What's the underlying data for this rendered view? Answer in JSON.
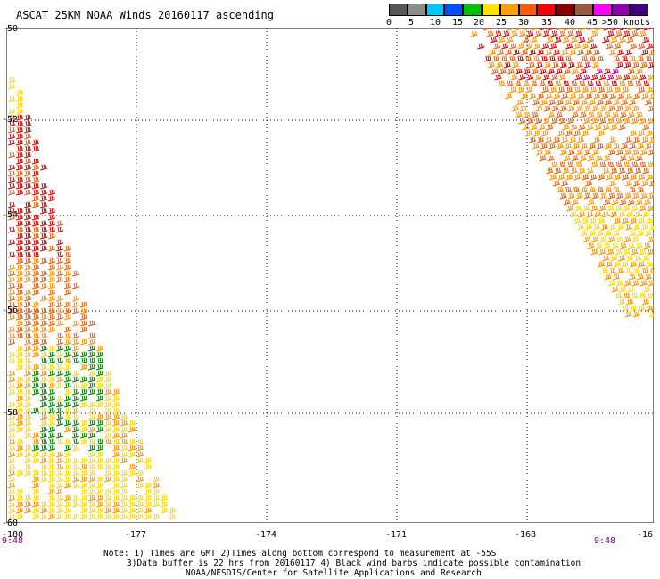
{
  "title": "ASCAT 25KM NOAA Winds 20160117 ascending",
  "legend": {
    "colors": [
      "#555555",
      "#8c8c8c",
      "#00c8ff",
      "#0050ff",
      "#00c000",
      "#ffe400",
      "#ffa000",
      "#ff5a00",
      "#ff0000",
      "#8c0000",
      "#9a5a3c",
      "#ff00ff",
      "#9000b0",
      "#400080"
    ],
    "labels": [
      "0",
      "5",
      "10",
      "15",
      "20",
      "25",
      "30",
      "35",
      "40",
      "45",
      ">50 knots"
    ]
  },
  "map": {
    "lat_labels": [
      "-50",
      "-52",
      "-54",
      "-56",
      "-58",
      "-60"
    ],
    "lon_labels": [
      "-180",
      "-177",
      "-174",
      "-171",
      "-168",
      "-16"
    ],
    "time_labels": [
      "9:48",
      "9:48"
    ],
    "gridline_style": "dotted",
    "wind_colors": {
      "yellow": "#ffd700",
      "orange": "#ff9000",
      "dark_orange": "#e06010",
      "red": "#d00000",
      "green": "#008000",
      "pink": "#d00080"
    }
  },
  "notes": [
    "Note: 1) Times are GMT 2)Times along bottom correspond to measurement at -55S",
    "3)Data buffer is 22 hrs from 20160117 4) Black wind barbs indicate possible contamination",
    "NOAA/NESDIS/Center for Satellite Applications and Research"
  ]
}
